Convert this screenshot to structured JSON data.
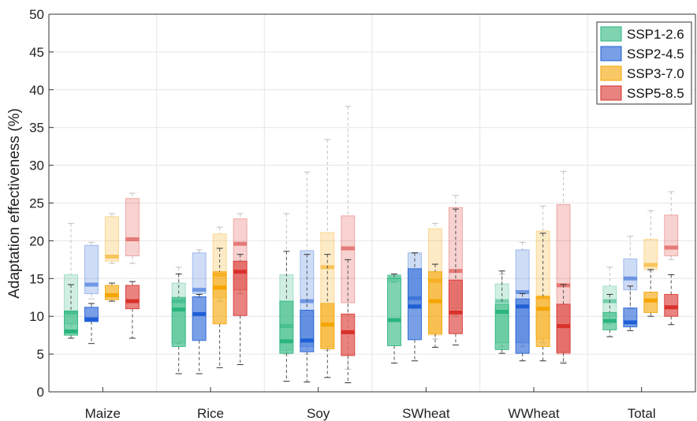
{
  "chart_data": {
    "type": "box",
    "ylabel": "Adaptation effectiveness (%)",
    "ylim": [
      0,
      50
    ],
    "yticks": [
      0,
      5,
      10,
      15,
      20,
      25,
      30,
      35,
      40,
      45,
      50
    ],
    "grid": true,
    "legend_position": "top-right",
    "categories": [
      "Maize",
      "Rice",
      "Soy",
      "SWheat",
      "WWheat",
      "Total"
    ],
    "series": [
      {
        "name": "SSP1-2.6",
        "color": "#2ab57d",
        "main": [
          {
            "min": 7.1,
            "q1": 7.5,
            "median": 8.0,
            "q3": 10.7,
            "max": 14.2
          },
          {
            "min": 2.4,
            "q1": 6.0,
            "median": 10.9,
            "q3": 12.5,
            "max": 15.6
          },
          {
            "min": 1.4,
            "q1": 5.1,
            "median": 6.7,
            "q3": 12.0,
            "max": 18.6
          },
          {
            "min": 3.8,
            "q1": 6.1,
            "median": 9.5,
            "q3": 15.0,
            "max": 15.6
          },
          {
            "min": 5.1,
            "q1": 5.6,
            "median": 10.6,
            "q3": 11.6,
            "max": 16.0
          },
          {
            "min": 7.3,
            "q1": 8.2,
            "median": 9.4,
            "q3": 10.5,
            "max": 12.9
          }
        ],
        "shadow": [
          {
            "min": 8.0,
            "q1": 9.0,
            "median": 10.5,
            "q3": 15.5,
            "max": 22.3
          },
          {
            "min": 6.4,
            "q1": 6.5,
            "median": 12.0,
            "q3": 14.4,
            "max": 16.5
          },
          {
            "min": 5.0,
            "q1": 5.5,
            "median": 8.7,
            "q3": 15.5,
            "max": 23.6
          },
          {
            "min": 14.5,
            "q1": 14.6,
            "median": 15.2,
            "q3": 15.5,
            "max": 15.6
          },
          {
            "min": 6.0,
            "q1": 6.5,
            "median": 12.0,
            "q3": 14.3,
            "max": 15.6
          },
          {
            "min": 9.0,
            "q1": 10.0,
            "median": 12.0,
            "q3": 14.0,
            "max": 16.5
          }
        ]
      },
      {
        "name": "SSP2-4.5",
        "color": "#1f5fd6",
        "main": [
          {
            "min": 6.4,
            "q1": 9.3,
            "median": 9.6,
            "q3": 11.2,
            "max": 11.7
          },
          {
            "min": 2.4,
            "q1": 6.8,
            "median": 10.3,
            "q3": 12.6,
            "max": 12.9
          },
          {
            "min": 1.3,
            "q1": 5.3,
            "median": 6.8,
            "q3": 10.8,
            "max": 18.2
          },
          {
            "min": 4.1,
            "q1": 6.9,
            "median": 11.3,
            "q3": 16.3,
            "max": 18.4
          },
          {
            "min": 4.1,
            "q1": 5.1,
            "median": 11.3,
            "q3": 12.3,
            "max": 13.0
          },
          {
            "min": 8.1,
            "q1": 8.6,
            "median": 9.2,
            "q3": 11.1,
            "max": 14.0
          }
        ],
        "shadow": [
          {
            "min": 12.3,
            "q1": 13.0,
            "median": 14.2,
            "q3": 19.4,
            "max": 19.8
          },
          {
            "min": 12.5,
            "q1": 13.0,
            "median": 13.5,
            "q3": 18.4,
            "max": 18.8
          },
          {
            "min": 5.0,
            "q1": 6.0,
            "median": 12.0,
            "q3": 18.7,
            "max": 29.1
          },
          {
            "min": 11.0,
            "q1": 11.5,
            "median": 12.4,
            "q3": 18.4,
            "max": 18.4
          },
          {
            "min": 6.0,
            "q1": 6.5,
            "median": 13.2,
            "q3": 18.8,
            "max": 19.8
          },
          {
            "min": 11.0,
            "q1": 13.5,
            "median": 15.0,
            "q3": 17.6,
            "max": 20.6
          }
        ]
      },
      {
        "name": "SSP3-7.0",
        "color": "#f5a400",
        "main": [
          {
            "min": 12.0,
            "q1": 12.2,
            "median": 12.8,
            "q3": 14.1,
            "max": 14.4
          },
          {
            "min": 3.2,
            "q1": 9.0,
            "median": 13.8,
            "q3": 15.9,
            "max": 19.0
          },
          {
            "min": 1.9,
            "q1": 5.7,
            "median": 8.9,
            "q3": 11.7,
            "max": 18.2
          },
          {
            "min": 5.9,
            "q1": 7.7,
            "median": 12.0,
            "q3": 15.9,
            "max": 16.9
          },
          {
            "min": 4.1,
            "q1": 6.0,
            "median": 11.0,
            "q3": 12.6,
            "max": 21.0
          },
          {
            "min": 10.0,
            "q1": 10.5,
            "median": 12.1,
            "q3": 13.2,
            "max": 16.2
          }
        ],
        "shadow": [
          {
            "min": 17.0,
            "q1": 17.3,
            "median": 17.9,
            "q3": 23.2,
            "max": 23.6
          },
          {
            "min": 12.0,
            "q1": 12.5,
            "median": 15.5,
            "q3": 20.9,
            "max": 21.8
          },
          {
            "min": 5.5,
            "q1": 6.0,
            "median": 16.5,
            "q3": 21.1,
            "max": 33.4
          },
          {
            "min": 7.0,
            "q1": 7.5,
            "median": 14.7,
            "q3": 21.6,
            "max": 22.3
          },
          {
            "min": 6.5,
            "q1": 7.0,
            "median": 12.5,
            "q3": 21.3,
            "max": 24.6
          },
          {
            "min": 16.0,
            "q1": 16.2,
            "median": 16.8,
            "q3": 20.2,
            "max": 24.0
          }
        ]
      },
      {
        "name": "SSP5-8.5",
        "color": "#d9312b",
        "main": [
          {
            "min": 7.1,
            "q1": 11.0,
            "median": 12.0,
            "q3": 14.1,
            "max": 14.6
          },
          {
            "min": 3.6,
            "q1": 10.1,
            "median": 15.9,
            "q3": 17.3,
            "max": 18.2
          },
          {
            "min": 1.2,
            "q1": 4.8,
            "median": 7.9,
            "q3": 10.3,
            "max": 17.5
          },
          {
            "min": 6.2,
            "q1": 7.7,
            "median": 10.5,
            "q3": 14.8,
            "max": 24.2
          },
          {
            "min": 3.8,
            "q1": 5.2,
            "median": 8.7,
            "q3": 11.6,
            "max": 14.2
          },
          {
            "min": 8.9,
            "q1": 10.0,
            "median": 11.2,
            "q3": 12.9,
            "max": 15.5
          }
        ],
        "shadow": [
          {
            "min": 17.0,
            "q1": 18.0,
            "median": 20.2,
            "q3": 25.6,
            "max": 26.3
          },
          {
            "min": 13.0,
            "q1": 13.5,
            "median": 19.6,
            "q3": 22.9,
            "max": 23.6
          },
          {
            "min": 3.0,
            "q1": 11.8,
            "median": 19.0,
            "q3": 23.3,
            "max": 37.8
          },
          {
            "min": 10.0,
            "q1": 11.0,
            "median": 16.0,
            "q3": 24.4,
            "max": 26.0
          },
          {
            "min": 4.0,
            "q1": 5.0,
            "median": 14.1,
            "q3": 24.8,
            "max": 29.2
          },
          {
            "min": 17.5,
            "q1": 18.0,
            "median": 19.1,
            "q3": 23.4,
            "max": 26.5
          }
        ]
      }
    ]
  }
}
